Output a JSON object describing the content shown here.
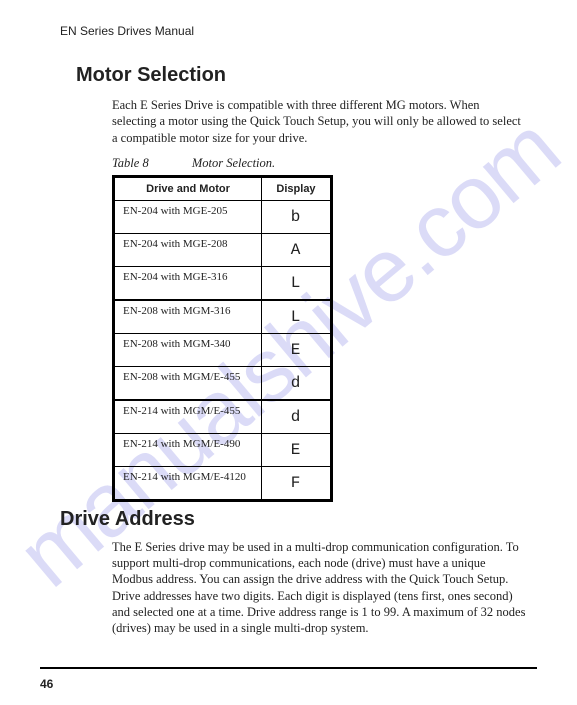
{
  "header": {
    "title": "EN Series Drives Manual"
  },
  "watermark": {
    "text": "manualshive.com"
  },
  "motor_selection": {
    "heading": "Motor Selection",
    "paragraph": "Each E Series Drive is compatible with three different MG motors. When selecting a motor using the Quick Touch Setup, you will only be allowed to select a compatible motor size for your drive.",
    "table_label": "Table 8",
    "table_title": "Motor Selection.",
    "columns": [
      "Drive and Motor",
      "Display"
    ],
    "rows": [
      {
        "dm": "EN-204 with MGE-205",
        "disp": "b",
        "group_start": false
      },
      {
        "dm": "EN-204 with MGE-208",
        "disp": "A",
        "group_start": false
      },
      {
        "dm": "EN-204 with MGE-316",
        "disp": "L",
        "group_start": false
      },
      {
        "dm": "EN-208 with MGM-316",
        "disp": "L",
        "group_start": true
      },
      {
        "dm": "EN-208 with MGM-340",
        "disp": "E",
        "group_start": false
      },
      {
        "dm": "EN-208 with MGM/E-455",
        "disp": "d",
        "group_start": false
      },
      {
        "dm": "EN-214 with MGM/E-455",
        "disp": "d",
        "group_start": true
      },
      {
        "dm": "EN-214 with MGM/E-490",
        "disp": "E",
        "group_start": false
      },
      {
        "dm": "EN-214 with MGM/E-4120",
        "disp": "F",
        "group_start": false
      }
    ]
  },
  "drive_address": {
    "heading": "Drive Address",
    "paragraph": "The E Series drive may be used in a multi-drop communication configuration. To support multi-drop communications, each node (drive) must have a unique Modbus address. You can assign the drive address with the Quick Touch Setup. Drive addresses have two digits. Each digit is displayed (tens first, ones second) and selected one at a time. Drive address range is 1 to 99. A maximum of 32 nodes (drives) may be used in a single multi-drop system."
  },
  "footer": {
    "page_number": "46"
  }
}
